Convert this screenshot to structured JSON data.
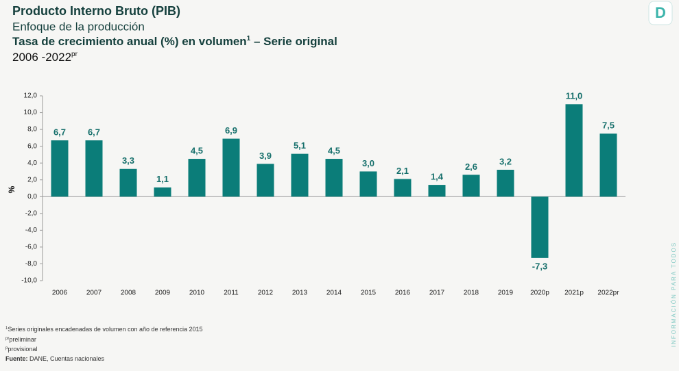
{
  "header": {
    "title": "Producto Interno Bruto (PIB)",
    "subtitle": "Enfoque de la producción",
    "chart_title": "Tasa de crecimiento anual (%) en volumen",
    "chart_title_sup": "1",
    "chart_title_rest": " – Serie original",
    "period": "2006 -2022",
    "period_sup": "pr"
  },
  "logo": "D",
  "side_text": "INFORMACIÓN PARA TODOS",
  "notes": [
    {
      "sup": "1",
      "text": "Series originales encadenadas de volumen con año de referencia 2015"
    },
    {
      "sup": "pr",
      "text": "preliminar"
    },
    {
      "sup": "p",
      "text": "provisional"
    }
  ],
  "source": {
    "label": "Fuente:",
    "text": " DANE, Cuentas nacionales"
  },
  "chart_data": {
    "type": "bar",
    "ylabel": "%",
    "color": "#0b7d79",
    "categories": [
      "2006",
      "2007",
      "2008",
      "2009",
      "2010",
      "2011",
      "2012",
      "2013",
      "2014",
      "2015",
      "2016",
      "2017",
      "2018",
      "2019",
      "2020p",
      "2021p",
      "2022pr"
    ],
    "values": [
      6.7,
      6.7,
      3.3,
      1.1,
      4.5,
      6.9,
      3.9,
      5.1,
      4.5,
      3.0,
      2.1,
      1.4,
      2.6,
      3.2,
      -7.3,
      11.0,
      7.5
    ],
    "value_labels": [
      "6,7",
      "6,7",
      "3,3",
      "1,1",
      "4,5",
      "6,9",
      "3,9",
      "5,1",
      "4,5",
      "3,0",
      "2,1",
      "1,4",
      "2,6",
      "3,2",
      "-7,3",
      "11,0",
      "7,5"
    ],
    "ylim": [
      -10,
      12
    ],
    "yticks": [
      {
        "value": -10,
        "label": "-10,0"
      },
      {
        "value": -8,
        "label": "-8,0"
      },
      {
        "value": -6,
        "label": "-6,0"
      },
      {
        "value": -4,
        "label": "-4,0"
      },
      {
        "value": -2,
        "label": "-2,0"
      },
      {
        "value": 0,
        "label": "0,0"
      },
      {
        "value": 2,
        "label": "2,0"
      },
      {
        "value": 4,
        "label": "4,0"
      },
      {
        "value": 6,
        "label": "6,0"
      },
      {
        "value": 8,
        "label": "8,0"
      },
      {
        "value": 10,
        "label": "10,0"
      },
      {
        "value": 12,
        "label": "12,0"
      }
    ]
  }
}
